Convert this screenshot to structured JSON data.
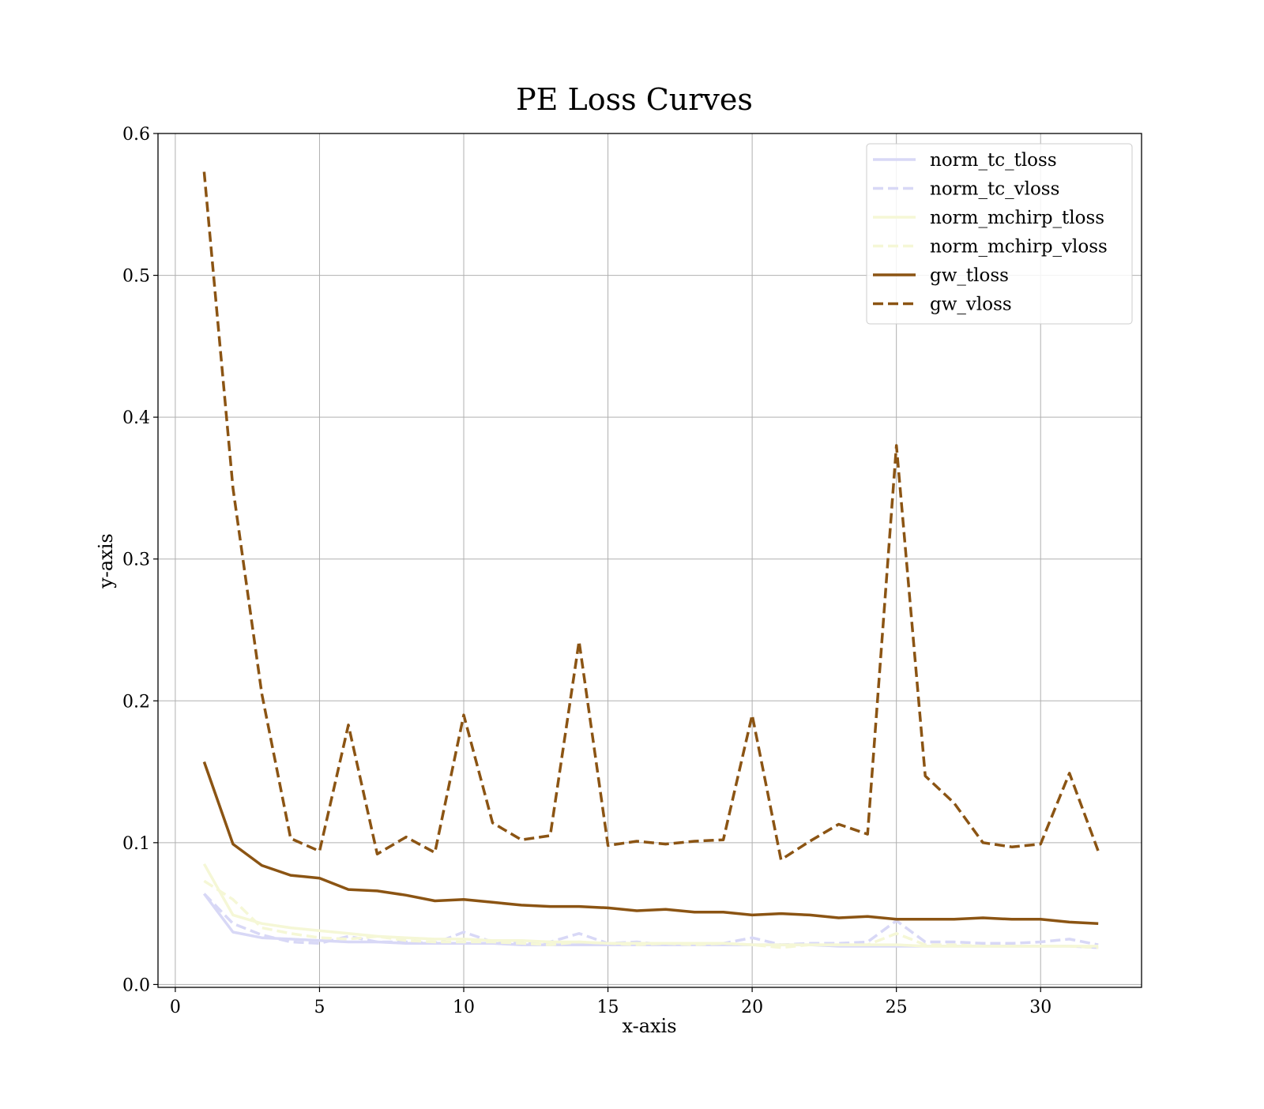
{
  "chart_data": {
    "type": "line",
    "title": "PE Loss Curves",
    "xlabel": "x-axis",
    "ylabel": "y-axis",
    "xlim": [
      -0.6,
      33.5
    ],
    "ylim": [
      -0.002,
      0.6
    ],
    "xticks": [
      0,
      5,
      10,
      15,
      20,
      25,
      30
    ],
    "yticks": [
      0.0,
      0.1,
      0.2,
      0.3,
      0.4,
      0.5,
      0.6
    ],
    "xtick_labels": [
      "0",
      "5",
      "10",
      "15",
      "20",
      "25",
      "30"
    ],
    "ytick_labels": [
      "0.0",
      "0.1",
      "0.2",
      "0.3",
      "0.4",
      "0.5",
      "0.6"
    ],
    "grid": true,
    "legend_position": "top-right",
    "x": [
      1,
      2,
      3,
      4,
      5,
      6,
      7,
      8,
      9,
      10,
      11,
      12,
      13,
      14,
      15,
      16,
      17,
      18,
      19,
      20,
      21,
      22,
      23,
      24,
      25,
      26,
      27,
      28,
      29,
      30,
      31,
      32
    ],
    "series": [
      {
        "name": "norm_tc_tloss",
        "color": "#d8d8f6",
        "dash": "solid",
        "values": [
          0.064,
          0.037,
          0.033,
          0.032,
          0.031,
          0.03,
          0.03,
          0.029,
          0.029,
          0.029,
          0.029,
          0.028,
          0.028,
          0.028,
          0.028,
          0.028,
          0.028,
          0.028,
          0.028,
          0.028,
          0.028,
          0.028,
          0.027,
          0.027,
          0.027,
          0.027,
          0.027,
          0.027,
          0.027,
          0.027,
          0.027,
          0.026
        ]
      },
      {
        "name": "norm_tc_vloss",
        "color": "#d8d8f6",
        "dash": "dashed",
        "values": [
          0.064,
          0.043,
          0.035,
          0.03,
          0.029,
          0.034,
          0.03,
          0.03,
          0.029,
          0.037,
          0.03,
          0.029,
          0.03,
          0.036,
          0.029,
          0.03,
          0.028,
          0.029,
          0.029,
          0.033,
          0.028,
          0.029,
          0.029,
          0.03,
          0.045,
          0.03,
          0.03,
          0.029,
          0.029,
          0.03,
          0.032,
          0.028
        ]
      },
      {
        "name": "norm_mchirp_tloss",
        "color": "#f5f7d6",
        "dash": "solid",
        "values": [
          0.085,
          0.049,
          0.043,
          0.04,
          0.038,
          0.036,
          0.034,
          0.033,
          0.032,
          0.032,
          0.031,
          0.031,
          0.03,
          0.03,
          0.029,
          0.029,
          0.029,
          0.029,
          0.029,
          0.028,
          0.028,
          0.028,
          0.028,
          0.028,
          0.028,
          0.027,
          0.027,
          0.027,
          0.027,
          0.027,
          0.027,
          0.027
        ]
      },
      {
        "name": "norm_mchirp_vloss",
        "color": "#f5f7d6",
        "dash": "dashed",
        "values": [
          0.073,
          0.06,
          0.04,
          0.036,
          0.033,
          0.032,
          0.034,
          0.031,
          0.03,
          0.03,
          0.03,
          0.029,
          0.028,
          0.03,
          0.029,
          0.028,
          0.029,
          0.028,
          0.029,
          0.028,
          0.026,
          0.028,
          0.028,
          0.028,
          0.036,
          0.028,
          0.028,
          0.027,
          0.027,
          0.027,
          0.027,
          0.026
        ]
      },
      {
        "name": "gw_tloss",
        "color": "#8b5413",
        "dash": "solid",
        "values": [
          0.157,
          0.099,
          0.084,
          0.077,
          0.075,
          0.067,
          0.066,
          0.063,
          0.059,
          0.06,
          0.058,
          0.056,
          0.055,
          0.055,
          0.054,
          0.052,
          0.053,
          0.051,
          0.051,
          0.049,
          0.05,
          0.049,
          0.047,
          0.048,
          0.046,
          0.046,
          0.046,
          0.047,
          0.046,
          0.046,
          0.044,
          0.043
        ]
      },
      {
        "name": "gw_vloss",
        "color": "#8b5413",
        "dash": "dashed",
        "values": [
          0.573,
          0.35,
          0.205,
          0.103,
          0.094,
          0.183,
          0.092,
          0.104,
          0.093,
          0.19,
          0.114,
          0.102,
          0.105,
          0.242,
          0.098,
          0.101,
          0.099,
          0.101,
          0.102,
          0.19,
          0.088,
          0.101,
          0.113,
          0.106,
          0.38,
          0.147,
          0.128,
          0.1,
          0.097,
          0.099,
          0.149,
          0.094
        ]
      }
    ]
  }
}
